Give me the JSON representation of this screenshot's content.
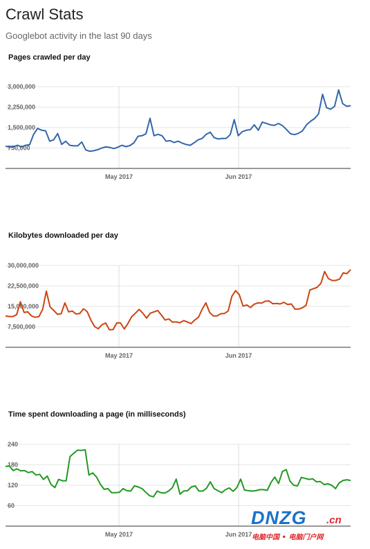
{
  "header": {
    "title": "Crawl Stats",
    "subtitle": "Googlebot activity in the last 90 days"
  },
  "watermark": {
    "main": "DNZG",
    "suffix": ".cn",
    "tagline": "电脑中国 • 电脑门户网"
  },
  "chart_data": [
    {
      "type": "line",
      "title": "Pages crawled per day",
      "color": "#3366aa",
      "x_labels": [
        "May 2017",
        "Jun 2017"
      ],
      "y_ticks": [
        "3,000,000",
        "2,250,000",
        "1,500,000",
        "750,000"
      ],
      "y_tick_values": [
        3000000,
        2250000,
        1500000,
        750000
      ],
      "ylim": [
        0,
        3000000
      ],
      "grid": true,
      "values": [
        820000,
        780000,
        800000,
        850000,
        790000,
        850000,
        870000,
        1250000,
        1470000,
        1400000,
        1380000,
        1000000,
        1050000,
        1280000,
        880000,
        1000000,
        850000,
        830000,
        830000,
        970000,
        680000,
        630000,
        650000,
        690000,
        750000,
        790000,
        770000,
        730000,
        780000,
        850000,
        800000,
        840000,
        940000,
        1180000,
        1200000,
        1270000,
        1840000,
        1200000,
        1250000,
        1200000,
        1000000,
        1020000,
        950000,
        1000000,
        930000,
        880000,
        850000,
        940000,
        1050000,
        1100000,
        1250000,
        1330000,
        1130000,
        1080000,
        1100000,
        1100000,
        1240000,
        1790000,
        1200000,
        1350000,
        1400000,
        1420000,
        1600000,
        1400000,
        1700000,
        1650000,
        1600000,
        1580000,
        1650000,
        1570000,
        1430000,
        1270000,
        1240000,
        1290000,
        1380000,
        1600000,
        1730000,
        1830000,
        2000000,
        2720000,
        2230000,
        2170000,
        2280000,
        2880000,
        2380000,
        2280000,
        2300000
      ]
    },
    {
      "type": "line",
      "title": "Kilobytes downloaded per day",
      "color": "#cc4411",
      "x_labels": [
        "May 2017",
        "Jun 2017"
      ],
      "y_ticks": [
        "30,000,000",
        "22,500,000",
        "15,000,000",
        "7,500,000"
      ],
      "y_tick_values": [
        30000000,
        22500000,
        15000000,
        7500000
      ],
      "ylim": [
        0,
        30000000
      ],
      "grid": true,
      "values": [
        11500000,
        11300000,
        11300000,
        12000000,
        16700000,
        12800000,
        13000000,
        11500000,
        11000000,
        11300000,
        13900000,
        20600000,
        14800000,
        13500000,
        12100000,
        12300000,
        16300000,
        13000000,
        13300000,
        12200000,
        12400000,
        14100000,
        13100000,
        10000000,
        7600000,
        6800000,
        8300000,
        8900000,
        6400000,
        6500000,
        9000000,
        8900000,
        6700000,
        8800000,
        11200000,
        12500000,
        13900000,
        12500000,
        10700000,
        12500000,
        13000000,
        13500000,
        11800000,
        10000000,
        10400000,
        9200000,
        9300000,
        9000000,
        9800000,
        9300000,
        8700000,
        10000000,
        11000000,
        14000000,
        16300000,
        12800000,
        11500000,
        11500000,
        12300000,
        12400000,
        13300000,
        18700000,
        20800000,
        19300000,
        15100000,
        15500000,
        14600000,
        15800000,
        16300000,
        16200000,
        16900000,
        17000000,
        16000000,
        16100000,
        15900000,
        16500000,
        15700000,
        15900000,
        14000000,
        14000000,
        14500000,
        15400000,
        21000000,
        21500000,
        22000000,
        23500000,
        27800000,
        25200000,
        24500000,
        24500000,
        25000000,
        27300000,
        27000000,
        28500000
      ]
    },
    {
      "type": "line",
      "title": "Time spent downloading a page (in milliseconds)",
      "color": "#229922",
      "x_labels": [
        "May 2017",
        "Jun 2017"
      ],
      "y_ticks": [
        "240",
        "180",
        "120",
        "60"
      ],
      "y_tick_values": [
        240,
        180,
        120,
        60
      ],
      "ylim": [
        0,
        240
      ],
      "grid": true,
      "values": [
        175,
        177,
        163,
        168,
        162,
        163,
        157,
        160,
        150,
        152,
        137,
        147,
        122,
        113,
        137,
        133,
        133,
        204,
        214,
        223,
        222,
        224,
        150,
        156,
        144,
        123,
        108,
        110,
        98,
        98,
        99,
        110,
        104,
        103,
        118,
        115,
        110,
        99,
        89,
        86,
        103,
        98,
        97,
        103,
        113,
        138,
        94,
        103,
        104,
        115,
        118,
        103,
        103,
        111,
        130,
        110,
        104,
        98,
        107,
        112,
        102,
        113,
        138,
        106,
        104,
        103,
        104,
        107,
        107,
        105,
        128,
        144,
        125,
        160,
        166,
        132,
        120,
        118,
        143,
        140,
        137,
        139,
        130,
        131,
        122,
        124,
        120,
        110,
        127,
        134,
        136,
        134
      ]
    }
  ]
}
